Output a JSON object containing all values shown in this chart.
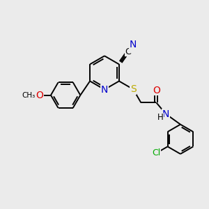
{
  "bg_color": "#ebebeb",
  "atom_colors": {
    "C": "#000000",
    "N": "#0000cc",
    "O": "#dd0000",
    "S": "#bbaa00",
    "Cl": "#00aa00",
    "H": "#000000"
  },
  "font_size": 9,
  "line_width": 1.4,
  "fig_size": [
    3.0,
    3.0
  ],
  "dpi": 100,
  "xlim": [
    0,
    10
  ],
  "ylim": [
    0,
    10
  ]
}
